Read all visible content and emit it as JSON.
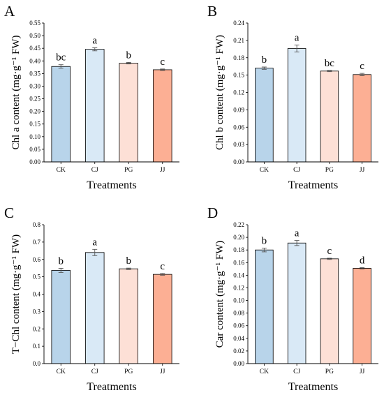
{
  "chart_data": [
    {
      "type": "bar",
      "panel_label": "A",
      "categories": [
        "CK",
        "CJ",
        "PG",
        "JJ"
      ],
      "values": [
        0.378,
        0.446,
        0.391,
        0.365
      ],
      "errors": [
        0.007,
        0.006,
        0.003,
        0.003
      ],
      "letters": [
        "bc",
        "a",
        "b",
        "c"
      ],
      "xlabel": "Treatments",
      "ylabel": "Chl a content (mg·g⁻¹ FW)",
      "ylim": [
        0,
        0.55
      ],
      "yticks": [
        "0.00",
        "0.05",
        "0.10",
        "0.15",
        "0.20",
        "0.25",
        "0.30",
        "0.35",
        "0.40",
        "0.45",
        "0.50",
        "0.55"
      ],
      "grid": false
    },
    {
      "type": "bar",
      "panel_label": "B",
      "categories": [
        "CK",
        "CJ",
        "PG",
        "JJ"
      ],
      "values": [
        0.162,
        0.196,
        0.157,
        0.151
      ],
      "errors": [
        0.002,
        0.006,
        0.001,
        0.002
      ],
      "letters": [
        "b",
        "a",
        "bc",
        "c"
      ],
      "xlabel": "Treatments",
      "ylabel": "Chl b content (mg·g⁻¹ FW)",
      "ylim": [
        0,
        0.24
      ],
      "yticks": [
        "0.00",
        "0.03",
        "0.06",
        "0.09",
        "0.12",
        "0.15",
        "0.18",
        "0.21",
        "0.24"
      ],
      "grid": false
    },
    {
      "type": "bar",
      "panel_label": "C",
      "categories": [
        "CK",
        "CJ",
        "PG",
        "JJ"
      ],
      "values": [
        0.537,
        0.64,
        0.546,
        0.514
      ],
      "errors": [
        0.012,
        0.018,
        0.004,
        0.005
      ],
      "letters": [
        "b",
        "a",
        "b",
        "c"
      ],
      "xlabel": "Treatments",
      "ylabel": "T−Chl content (mg·g⁻¹ FW)",
      "ylim": [
        0,
        0.8
      ],
      "yticks": [
        "0.0",
        "0.1",
        "0.2",
        "0.3",
        "0.4",
        "0.5",
        "0.6",
        "0.7",
        "0.8"
      ],
      "grid": false
    },
    {
      "type": "bar",
      "panel_label": "D",
      "categories": [
        "CK",
        "CJ",
        "PG",
        "JJ"
      ],
      "values": [
        0.18,
        0.191,
        0.166,
        0.151
      ],
      "errors": [
        0.003,
        0.004,
        0.001,
        0.001
      ],
      "letters": [
        "b",
        "a",
        "c",
        "d"
      ],
      "xlabel": "Treatments",
      "ylabel": "Car content (mg·g⁻¹ FW)",
      "ylim": [
        0,
        0.22
      ],
      "yticks": [
        "0.00",
        "0.02",
        "0.04",
        "0.06",
        "0.08",
        "0.10",
        "0.12",
        "0.14",
        "0.16",
        "0.18",
        "0.20",
        "0.22"
      ],
      "grid": false
    }
  ],
  "colors": {
    "CK": "#b8d4ea",
    "CJ": "#d9e9f6",
    "PG": "#fde0d6",
    "JJ": "#fcaf94",
    "axis": "#000000",
    "error_bar": "#555555"
  }
}
